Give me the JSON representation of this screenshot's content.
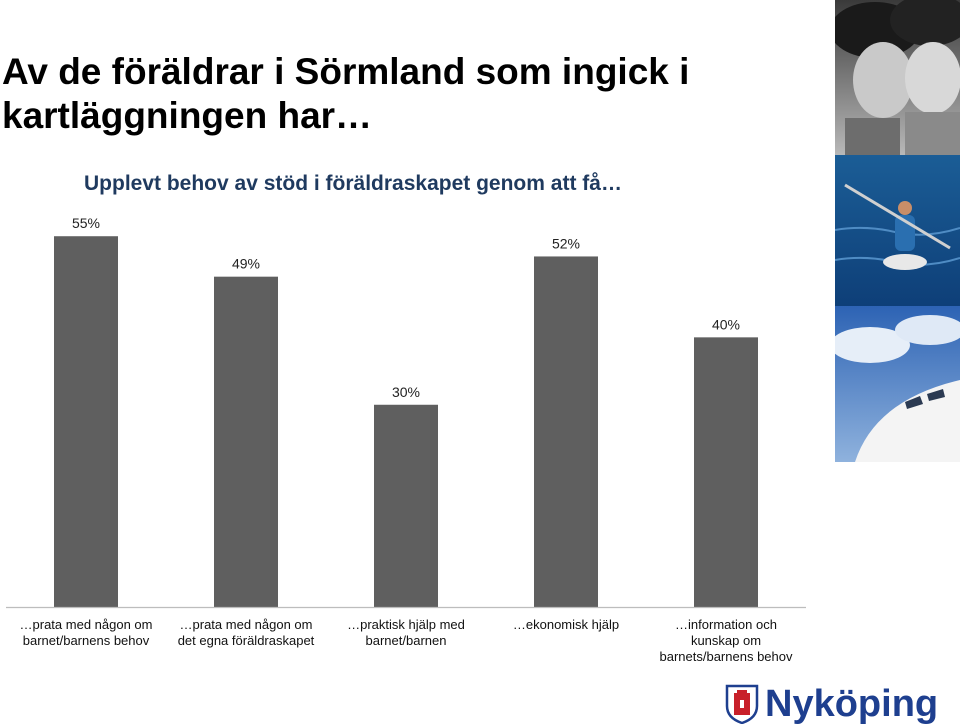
{
  "slide": {
    "title_line1": "Av de föräldrar i Sörmland som ingick i",
    "title_line2": "kartläggningen har…"
  },
  "logo": {
    "text": "Nyköping"
  },
  "colors": {
    "bar": "#5f5f5f",
    "title_blue": "#1f3a5f",
    "logo_blue": "#1e3f8f",
    "logo_red": "#c8202a"
  },
  "chart_data": {
    "type": "bar",
    "title": "Upplevt behov av stöd i föräldraskapet genom att få…",
    "categories": [
      [
        "…prata med någon om",
        "barnet/barnens behov"
      ],
      [
        "…prata med någon om",
        "det egna föräldraskapet"
      ],
      [
        "…praktisk hjälp med",
        "barnet/barnen"
      ],
      [
        "…ekonomisk hjälp"
      ],
      [
        "…information och",
        "kunskap om",
        "barnets/barnens behov"
      ]
    ],
    "values": [
      55,
      49,
      30,
      52,
      40
    ],
    "value_labels": [
      "55%",
      "49%",
      "30%",
      "52%",
      "40%"
    ],
    "ylim": [
      0,
      58
    ],
    "grid": false,
    "legend": "none"
  }
}
